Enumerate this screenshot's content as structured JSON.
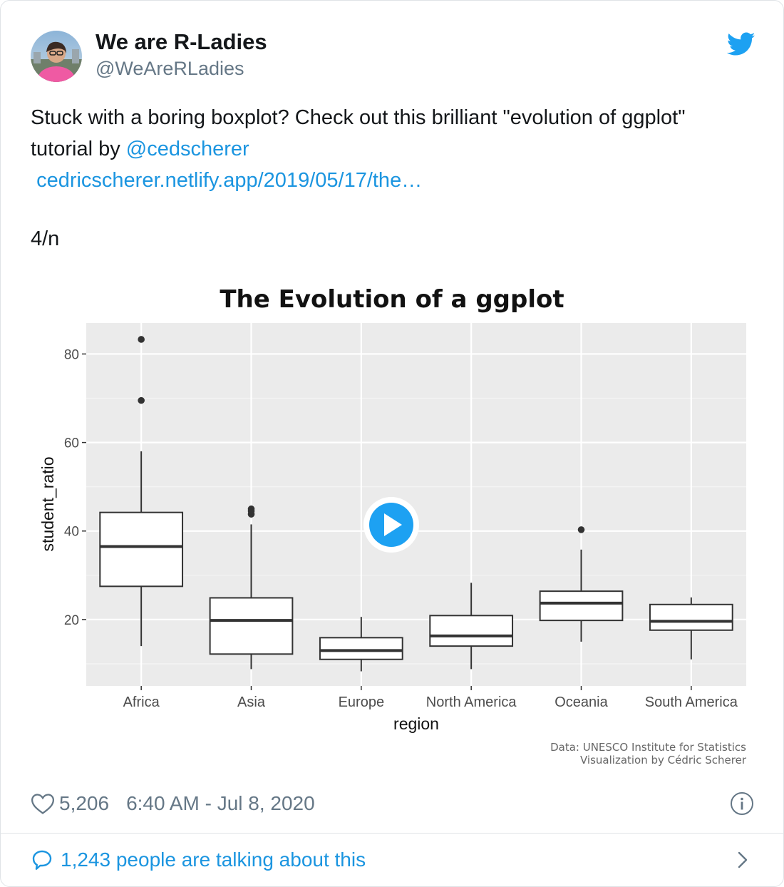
{
  "author": {
    "name": "We are R-Ladies",
    "handle": "@WeAreRLadies"
  },
  "tweet": {
    "text_line1": "Stuck with a boring boxplot? Check out this brilliant \"evolution of ggplot\"",
    "text_line2_prefix": "tutorial by ",
    "mention": "@cedscherer",
    "link": "cedricscherer.netlify.app/2019/05/17/the…",
    "counter": "4/n"
  },
  "footer": {
    "likes": "5,206",
    "timestamp": "6:40 AM - Jul 8, 2020",
    "talking": "1,243 people are talking about this"
  },
  "colors": {
    "accent": "#1b95e0",
    "panel_bg": "#ebebeb",
    "play_button": "#1da1f2"
  },
  "icons": {
    "brand": "twitter-bird-icon",
    "like": "heart-icon",
    "info": "info-icon",
    "talk": "speech-bubble-icon",
    "chevron": "chevron-right-icon",
    "play": "play-icon"
  },
  "chart_data": {
    "type": "boxplot",
    "title": "The Evolution of a ggplot",
    "xlabel": "region",
    "ylabel": "student_ratio",
    "ylim": [
      5,
      87
    ],
    "yticks": [
      20,
      40,
      60,
      80
    ],
    "grid": true,
    "categories": [
      "Africa",
      "Asia",
      "Europe",
      "North America",
      "Oceania",
      "South America"
    ],
    "boxes": [
      {
        "min": 14,
        "q1": 27.5,
        "median": 36.5,
        "q3": 44.2,
        "max": 58,
        "outliers": [
          69.5,
          83.3
        ]
      },
      {
        "min": 8.8,
        "q1": 12.2,
        "median": 19.8,
        "q3": 24.9,
        "max": 41.5,
        "outliers": [
          43.8,
          44.5,
          45.0
        ]
      },
      {
        "min": 8.3,
        "q1": 11,
        "median": 13,
        "q3": 15.9,
        "max": 20.6,
        "outliers": []
      },
      {
        "min": 8.8,
        "q1": 14,
        "median": 16.3,
        "q3": 20.9,
        "max": 28.3,
        "outliers": []
      },
      {
        "min": 15,
        "q1": 19.8,
        "median": 23.7,
        "q3": 26.4,
        "max": 35.8,
        "outliers": [
          40.3
        ]
      },
      {
        "min": 11,
        "q1": 17.6,
        "median": 19.6,
        "q3": 23.4,
        "max": 25,
        "outliers": []
      }
    ],
    "caption_line1": "Data: UNESCO Institute for Statistics",
    "caption_line2": "Visualization by Cédric Scherer"
  }
}
